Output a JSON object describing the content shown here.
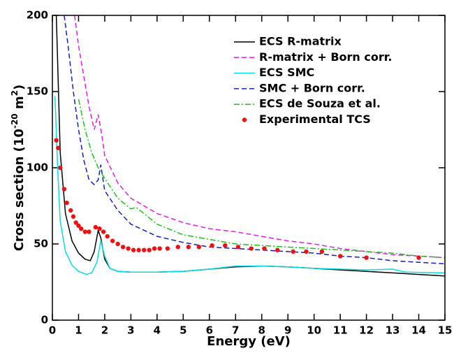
{
  "chart_data": {
    "type": "line",
    "x_label": "Energy  (eV)",
    "y_label_parts": [
      "Cross section (10",
      "-20",
      " m",
      "2",
      ")"
    ],
    "xlim": [
      0,
      15
    ],
    "xticks": [
      0,
      1,
      2,
      3,
      4,
      5,
      6,
      7,
      8,
      9,
      10,
      11,
      12,
      13,
      14,
      15
    ],
    "ylim": [
      0,
      200
    ],
    "yticks": [
      0,
      50,
      100,
      150,
      200
    ],
    "legend": "upper-right",
    "series": [
      {
        "name": "ECS R-matrix",
        "color": "#000000",
        "dash": "none",
        "x": [
          0.15,
          0.2,
          0.3,
          0.5,
          0.75,
          1,
          1.25,
          1.45,
          1.6,
          1.75,
          1.85,
          2,
          2.2,
          2.5,
          3,
          4,
          5,
          6,
          7,
          8,
          9,
          10,
          11,
          12,
          13,
          14,
          15
        ],
        "values": [
          200,
          170,
          110,
          70,
          52,
          44,
          40,
          39,
          45,
          59,
          54,
          40,
          34,
          32,
          31.5,
          31.5,
          32,
          33.5,
          35,
          35.5,
          35,
          34,
          33,
          32,
          31,
          30,
          29
        ]
      },
      {
        "name": "R-matrix + Born corr.",
        "color": "#e020e0",
        "dash": "7,4",
        "x": [
          0.85,
          1,
          1.2,
          1.4,
          1.6,
          1.75,
          1.9,
          2,
          2.5,
          3,
          4,
          5,
          6,
          7,
          8,
          9,
          10,
          11,
          12,
          13,
          14,
          15
        ],
        "values": [
          200,
          180,
          160,
          140,
          125,
          135,
          120,
          108,
          90,
          80,
          70,
          64,
          60,
          58,
          55,
          52,
          50,
          47,
          45,
          43,
          42,
          41
        ]
      },
      {
        "name": "ECS SMC",
        "color": "#00e0e0",
        "dash": "none",
        "x": [
          0.1,
          0.2,
          0.3,
          0.5,
          0.75,
          1,
          1.3,
          1.5,
          1.7,
          1.85,
          2,
          2.2,
          2.5,
          3,
          4,
          5,
          6,
          7,
          8,
          9,
          10,
          11,
          12,
          13,
          13.5,
          15
        ],
        "values": [
          147,
          100,
          65,
          45,
          36,
          32,
          30,
          31,
          38,
          52,
          42,
          34,
          32,
          31.5,
          31.5,
          32,
          33.5,
          35.5,
          35.5,
          35,
          34,
          33.5,
          33,
          33.5,
          31.5,
          31
        ]
      },
      {
        "name": "SMC + Born corr.",
        "color": "#1020c0",
        "dash": "7,4",
        "x": [
          0.45,
          0.6,
          0.8,
          1,
          1.2,
          1.4,
          1.6,
          1.75,
          1.85,
          2,
          2.5,
          3,
          4,
          5,
          6,
          7,
          8,
          9,
          10,
          11,
          12,
          13,
          14,
          15
        ],
        "values": [
          200,
          180,
          150,
          125,
          105,
          92,
          89,
          92,
          102,
          85,
          72,
          63,
          55,
          51,
          48,
          47,
          46,
          45,
          44,
          42,
          41,
          39,
          38,
          37
        ]
      },
      {
        "name": "ECS de Souza et al.",
        "color": "#20c020",
        "dash": "8,3,2,3",
        "x": [
          1,
          1.25,
          1.5,
          1.75,
          2,
          2.5,
          3,
          3.2,
          3.5,
          4,
          5,
          6,
          7,
          8,
          9,
          10,
          11,
          12,
          13,
          14,
          15
        ],
        "values": [
          145,
          125,
          110,
          100,
          93,
          80,
          73,
          74,
          70,
          63,
          56,
          53,
          50,
          49,
          48,
          47,
          46,
          45,
          44,
          42,
          41
        ]
      },
      {
        "name": "Experimental TCS",
        "color": "#ee1111",
        "kind": "scatter",
        "x": [
          0.15,
          0.22,
          0.3,
          0.45,
          0.55,
          0.7,
          0.8,
          0.9,
          1,
          1.1,
          1.25,
          1.4,
          1.65,
          1.8,
          1.95,
          2.1,
          2.3,
          2.5,
          2.7,
          2.9,
          3.1,
          3.3,
          3.5,
          3.7,
          3.9,
          4.1,
          4.4,
          4.8,
          5.2,
          5.6,
          6.1,
          6.6,
          7.1,
          7.6,
          8.1,
          8.6,
          9.2,
          9.7,
          10.3,
          11,
          12,
          14
        ],
        "values": [
          118,
          113,
          100,
          86,
          77,
          72,
          68,
          64,
          62,
          60,
          58,
          58,
          61,
          60,
          58,
          55,
          52,
          50,
          48,
          47,
          46,
          46,
          46,
          46,
          47,
          47,
          47,
          48,
          48,
          48,
          49,
          49,
          48,
          47,
          47,
          46,
          45,
          45,
          45,
          42,
          41,
          41
        ]
      }
    ]
  }
}
